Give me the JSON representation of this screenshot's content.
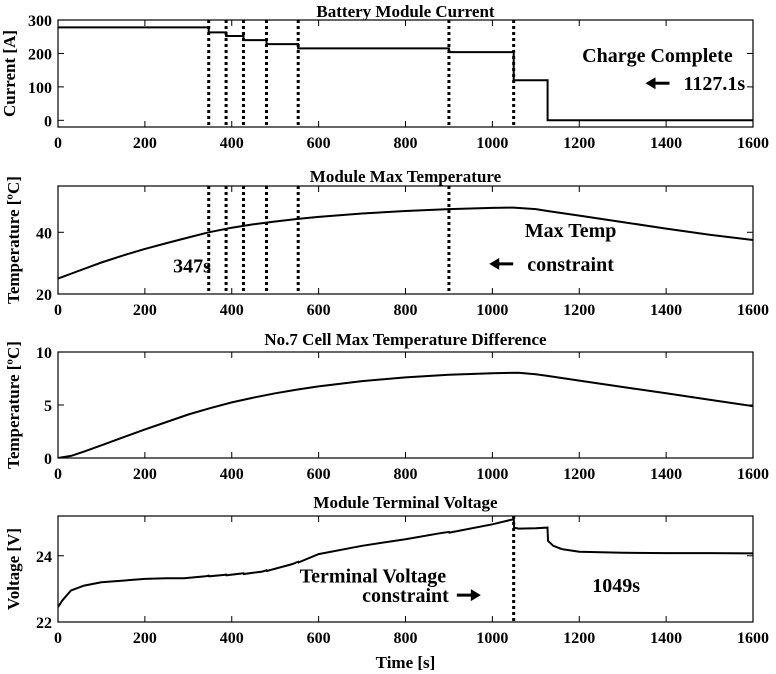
{
  "chart_data": [
    {
      "type": "line",
      "title": "Battery Module Current",
      "ylabel": "Current [A]",
      "xlabel": "",
      "xlim": [
        0,
        1600
      ],
      "ylim": [
        -20,
        300
      ],
      "xticks": [
        0,
        200,
        400,
        600,
        800,
        1000,
        1200,
        1400,
        1600
      ],
      "yticks": [
        0,
        100,
        200,
        300
      ],
      "grid": false,
      "series": [
        {
          "name": "Current",
          "x": [
            0,
            347,
            347,
            387,
            387,
            427,
            427,
            480,
            480,
            553,
            553,
            900,
            900,
            1049,
            1049,
            1127.1,
            1127.1,
            1600
          ],
          "y": [
            278,
            278,
            263,
            263,
            252,
            252,
            240,
            240,
            228,
            228,
            215,
            215,
            204,
            204,
            120,
            120,
            0,
            0
          ]
        }
      ],
      "vlines": [
        347,
        387,
        427,
        480,
        553,
        900,
        1049
      ],
      "annotations": [
        {
          "text": "Charge Complete",
          "x": 1380,
          "y": 175,
          "arrow": false
        },
        {
          "text": "1127.1s",
          "x": 1440,
          "y": 90,
          "arrow": true
        }
      ]
    },
    {
      "type": "line",
      "title": "Module Max Temperature",
      "ylabel": "Temperature [ºC]",
      "xlabel": "",
      "xlim": [
        0,
        1600
      ],
      "ylim": [
        20,
        55
      ],
      "xticks": [
        0,
        200,
        400,
        600,
        800,
        1000,
        1200,
        1400,
        1600
      ],
      "yticks": [
        20,
        40
      ],
      "grid": false,
      "series": [
        {
          "name": "Max Temperature",
          "x": [
            0,
            50,
            100,
            150,
            200,
            250,
            300,
            347,
            400,
            450,
            500,
            550,
            600,
            700,
            800,
            900,
            1000,
            1049,
            1100,
            1127,
            1200,
            1300,
            1400,
            1500,
            1600
          ],
          "y": [
            25,
            27.6,
            30.2,
            32.5,
            34.6,
            36.5,
            38.3,
            40,
            41.5,
            42.6,
            43.5,
            44.3,
            45,
            46.1,
            46.9,
            47.5,
            47.9,
            48,
            47.5,
            46.9,
            45.4,
            43.3,
            41.2,
            39.2,
            37.5
          ]
        }
      ],
      "vlines": [
        347,
        387,
        427,
        480,
        553,
        900
      ],
      "annotations": [
        {
          "text": "347s",
          "x": 265,
          "y": 27,
          "arrow": false
        },
        {
          "text": "Max Temp",
          "x": 1180,
          "y": 38.5,
          "arrow": false
        },
        {
          "text": "constraint",
          "x": 1180,
          "y": 27.5,
          "arrow": true
        }
      ]
    },
    {
      "type": "line",
      "title": "No.7 Cell Max Temperature Difference",
      "ylabel": "Temperature [ºC]",
      "xlabel": "",
      "xlim": [
        0,
        1600
      ],
      "ylim": [
        0,
        10
      ],
      "xticks": [
        0,
        200,
        400,
        600,
        800,
        1000,
        1200,
        1400,
        1600
      ],
      "yticks": [
        0,
        5,
        10
      ],
      "grid": false,
      "series": [
        {
          "name": "Temperature Difference",
          "x": [
            0,
            30,
            60,
            100,
            150,
            200,
            250,
            300,
            350,
            400,
            450,
            500,
            550,
            600,
            700,
            800,
            900,
            1000,
            1060,
            1100,
            1127,
            1200,
            1300,
            1400,
            1500,
            1600
          ],
          "y": [
            0,
            0.2,
            0.6,
            1.2,
            1.95,
            2.7,
            3.4,
            4.1,
            4.7,
            5.25,
            5.7,
            6.1,
            6.45,
            6.75,
            7.25,
            7.6,
            7.85,
            8.0,
            8.05,
            7.9,
            7.75,
            7.3,
            6.7,
            6.1,
            5.5,
            4.9
          ]
        }
      ],
      "vlines": [],
      "annotations": []
    },
    {
      "type": "line",
      "title": "Module Terminal Voltage",
      "ylabel": "Voltage [V]",
      "xlabel": "Time [s]",
      "xlim": [
        0,
        1600
      ],
      "ylim": [
        22,
        25.2
      ],
      "xticks": [
        0,
        200,
        400,
        600,
        800,
        1000,
        1200,
        1400,
        1600
      ],
      "yticks": [
        22,
        24
      ],
      "grid": false,
      "series": [
        {
          "name": "Terminal Voltage",
          "x": [
            0,
            10,
            30,
            60,
            100,
            150,
            200,
            250,
            290,
            340,
            347,
            348,
            380,
            387,
            388,
            420,
            427,
            428,
            470,
            480,
            481,
            540,
            553,
            554,
            600,
            700,
            800,
            880,
            900,
            901,
            1000,
            1048,
            1049,
            1050,
            1060,
            1100,
            1127,
            1128,
            1140,
            1160,
            1200,
            1300,
            1400,
            1500,
            1600
          ],
          "y": [
            22.45,
            22.65,
            22.95,
            23.1,
            23.2,
            23.25,
            23.3,
            23.32,
            23.32,
            23.38,
            23.4,
            23.38,
            23.42,
            23.43,
            23.41,
            23.46,
            23.47,
            23.45,
            23.52,
            23.56,
            23.54,
            23.75,
            23.82,
            23.8,
            24.05,
            24.3,
            24.5,
            24.68,
            24.72,
            24.7,
            24.95,
            25.1,
            25.15,
            24.85,
            24.82,
            24.83,
            24.85,
            24.45,
            24.3,
            24.2,
            24.12,
            24.09,
            24.08,
            24.08,
            24.07
          ]
        }
      ],
      "vlines": [
        1049
      ],
      "annotations": [
        {
          "text": "Terminal Voltage",
          "x": 725,
          "y": 23.2,
          "arrow": false
        },
        {
          "text": "constraint",
          "x": 800,
          "y": 22.6,
          "arrow": true
        },
        {
          "text": "1049s",
          "x": 1230,
          "y": 22.9,
          "arrow": false
        }
      ]
    }
  ]
}
